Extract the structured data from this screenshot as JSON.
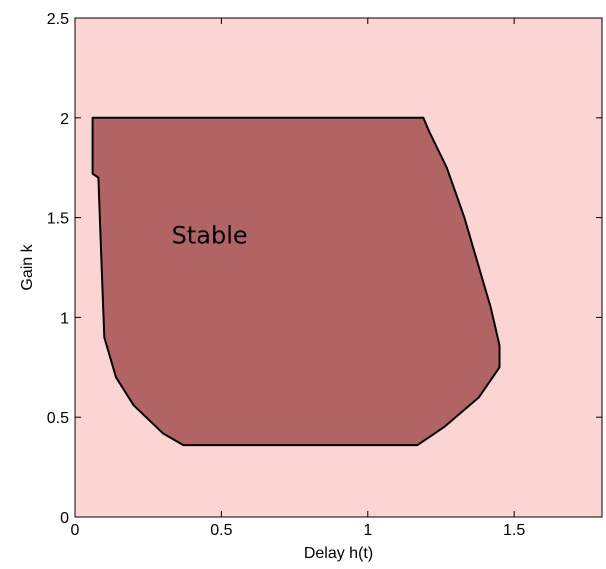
{
  "chart_data": {
    "type": "area",
    "title": "",
    "xlabel": "Delay h(t)",
    "ylabel": "Gain k",
    "xlim": [
      0,
      1.8
    ],
    "ylim": [
      0,
      2.5
    ],
    "x_ticks": [
      "0",
      "0.5",
      "1",
      "1.5"
    ],
    "x_tick_values": [
      0,
      0.5,
      1,
      1.5
    ],
    "y_ticks": [
      "0",
      "0.5",
      "1",
      "1.5",
      "2",
      "2.5"
    ],
    "y_tick_values": [
      0,
      0.5,
      1,
      1.5,
      2,
      2.5
    ],
    "grid": false,
    "background_color": "#fbd4d4",
    "region_color": "#b26464",
    "regions": [
      {
        "name": "Stable",
        "points": [
          [
            0.06,
            2.0
          ],
          [
            1.19,
            2.0
          ],
          [
            1.21,
            1.93
          ],
          [
            1.27,
            1.75
          ],
          [
            1.33,
            1.5
          ],
          [
            1.38,
            1.25
          ],
          [
            1.42,
            1.05
          ],
          [
            1.45,
            0.86
          ],
          [
            1.45,
            0.75
          ],
          [
            1.38,
            0.6
          ],
          [
            1.26,
            0.45
          ],
          [
            1.17,
            0.36
          ],
          [
            0.37,
            0.36
          ],
          [
            0.3,
            0.42
          ],
          [
            0.2,
            0.56
          ],
          [
            0.14,
            0.7
          ],
          [
            0.1,
            0.9
          ],
          [
            0.09,
            1.3
          ],
          [
            0.08,
            1.7
          ],
          [
            0.06,
            1.72
          ]
        ]
      }
    ],
    "annotations": [
      {
        "text": "Stable",
        "x": 0.33,
        "y": 1.37
      }
    ]
  }
}
